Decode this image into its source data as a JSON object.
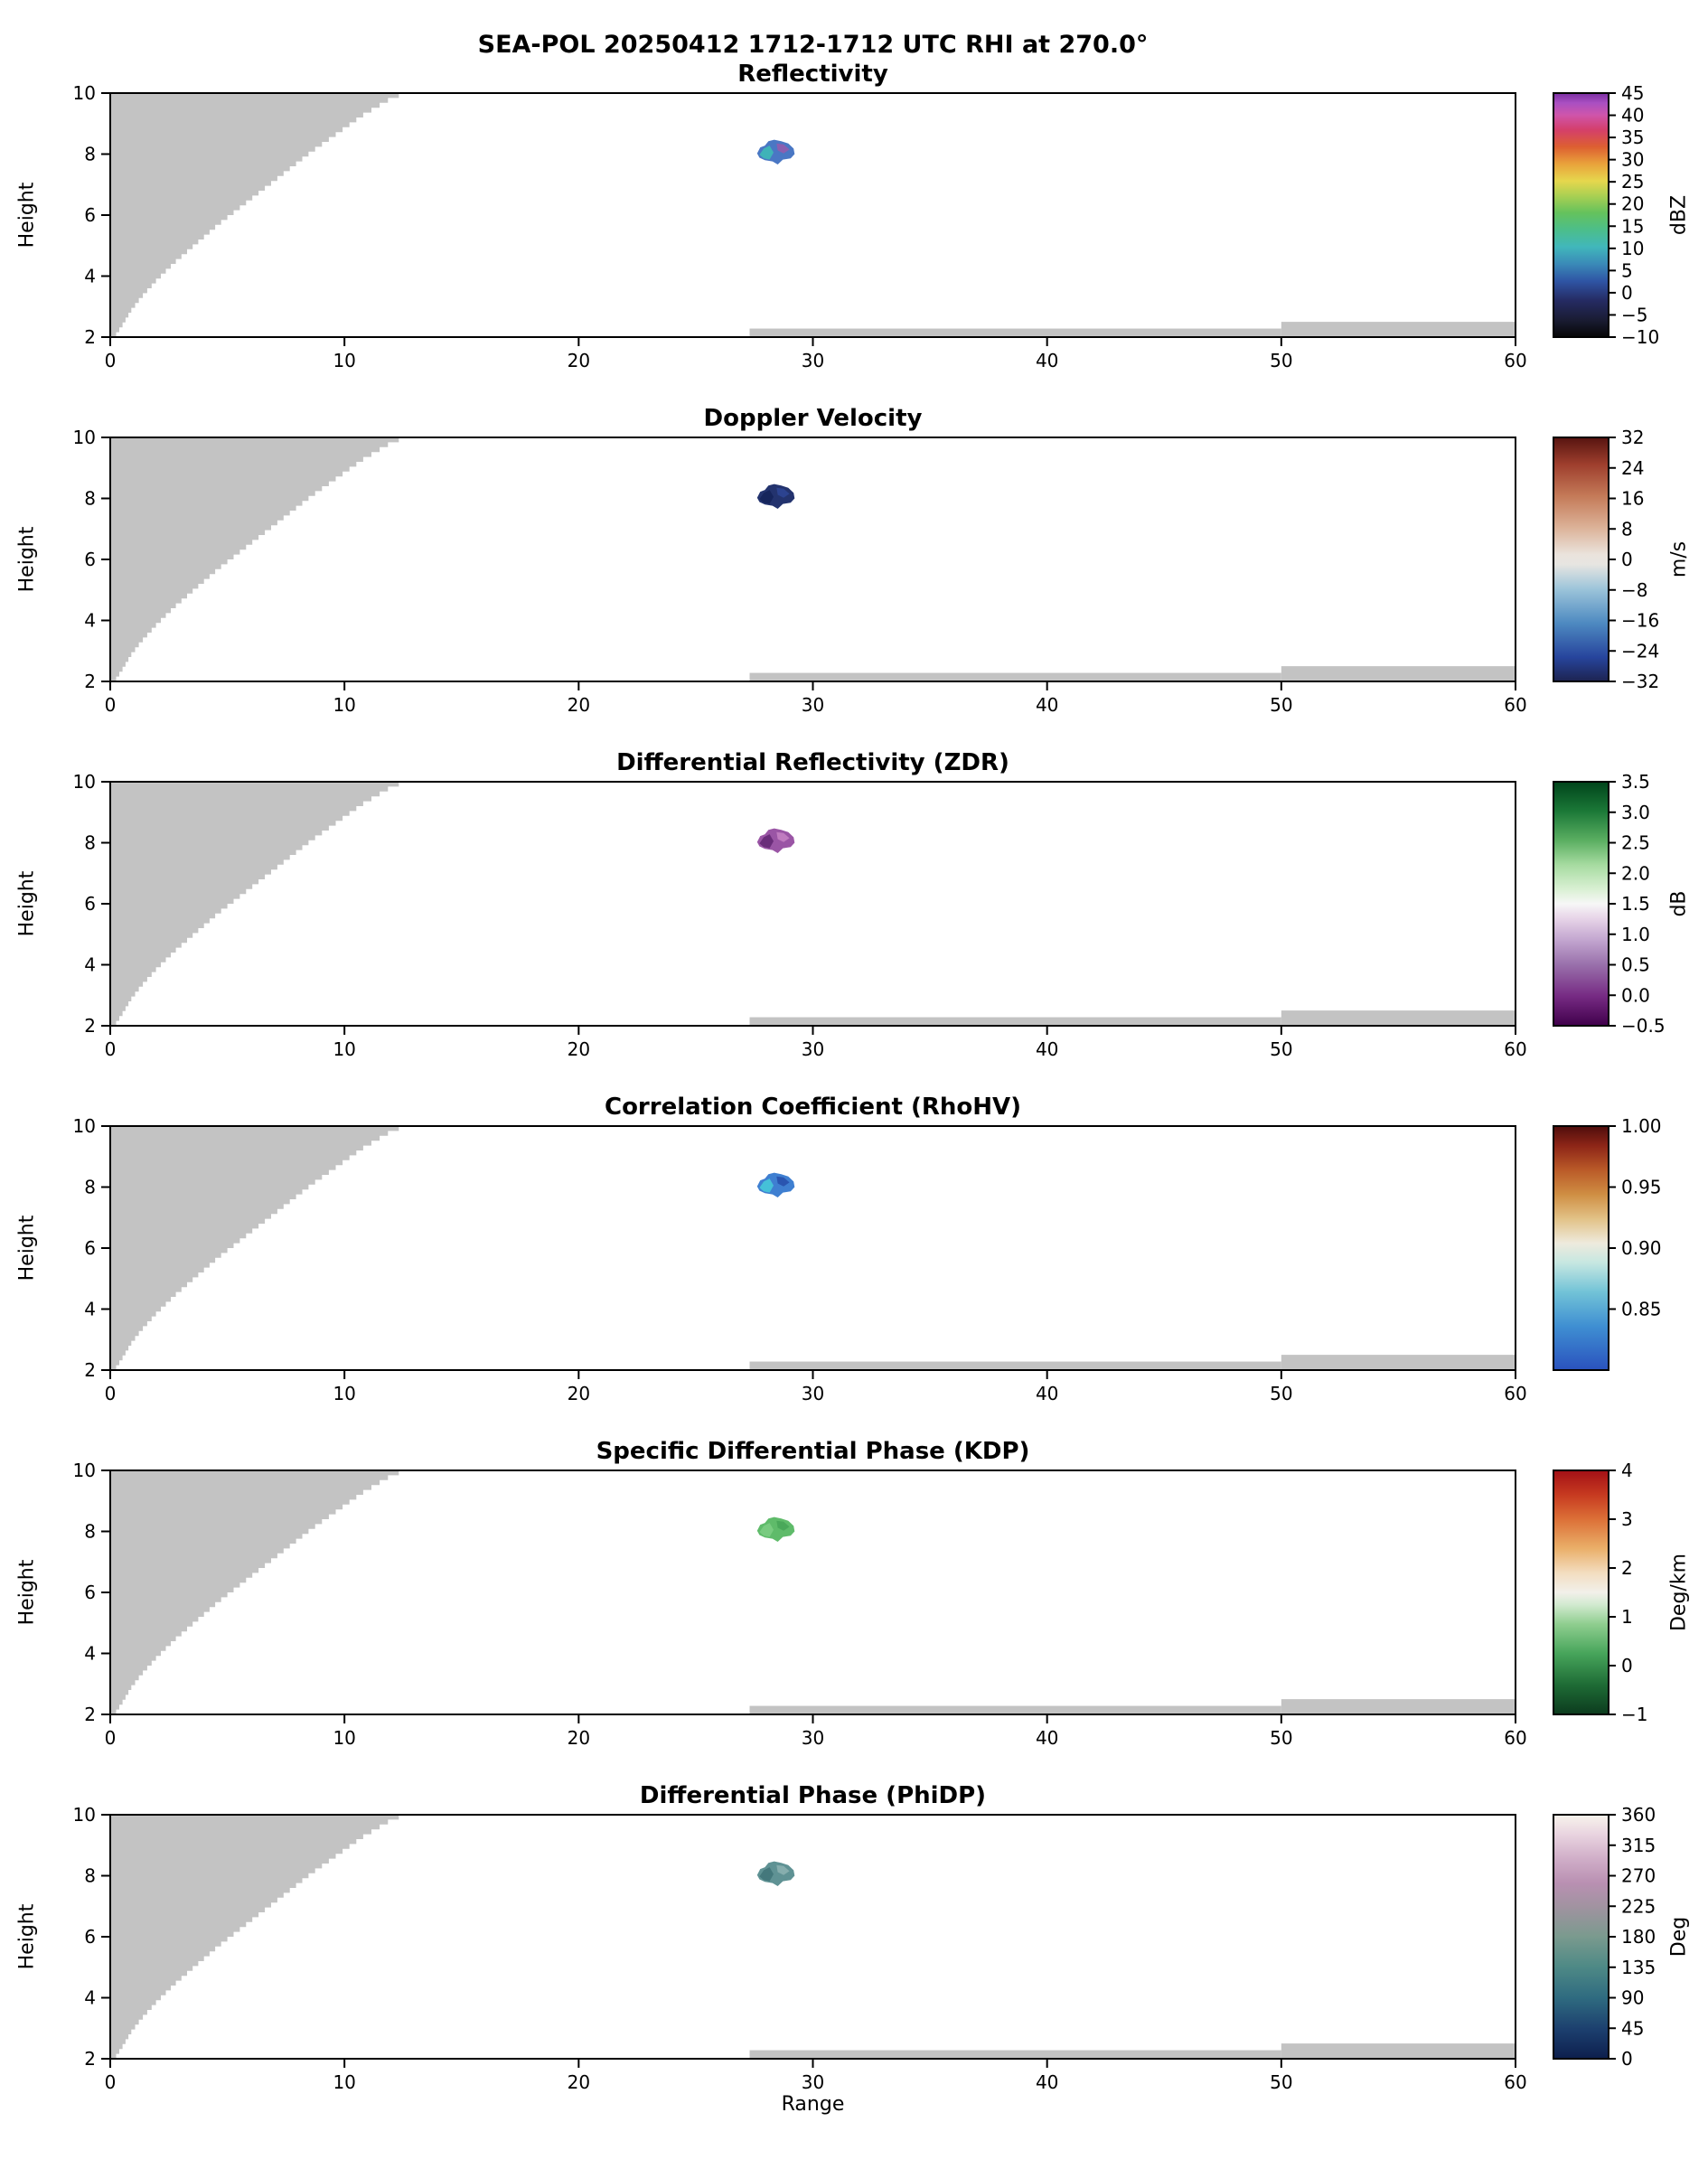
{
  "chart_data": {
    "type": "heatmap",
    "suptitle": "SEA-POL 20250412 1712-1712 UTC RHI at 270.0°",
    "xlabel": "Range",
    "ylabel": "Height",
    "xlim": [
      0,
      60
    ],
    "ylim": [
      2,
      10
    ],
    "x_ticks": [
      0,
      10,
      20,
      30,
      40,
      50,
      60
    ],
    "y_ticks": [
      2,
      4,
      6,
      8,
      10
    ],
    "grid": false,
    "clutter_color": "#c3c3c3",
    "blocked_region_boundary": [
      [
        0.25,
        2.0
      ],
      [
        0.55,
        2.35
      ],
      [
        0.9,
        2.8
      ],
      [
        1.3,
        3.2
      ],
      [
        2.0,
        3.8
      ],
      [
        2.8,
        4.4
      ],
      [
        3.7,
        5.0
      ],
      [
        4.6,
        5.6
      ],
      [
        5.6,
        6.2
      ],
      [
        6.6,
        6.8
      ],
      [
        7.6,
        7.4
      ],
      [
        8.6,
        8.0
      ],
      [
        9.7,
        8.6
      ],
      [
        10.8,
        9.2
      ],
      [
        11.9,
        9.7
      ],
      [
        12.8,
        10.0
      ]
    ],
    "ground_clutter_strips": [
      {
        "x0": 27.3,
        "x1": 50.0,
        "y0": 2.0,
        "y1": 2.28
      },
      {
        "x0": 50.0,
        "x1": 60.0,
        "y0": 2.0,
        "y1": 2.5
      }
    ],
    "echo_outline": [
      [
        27.62,
        8.02
      ],
      [
        27.75,
        8.22
      ],
      [
        27.95,
        8.28
      ],
      [
        28.1,
        8.42
      ],
      [
        28.35,
        8.47
      ],
      [
        28.65,
        8.42
      ],
      [
        28.95,
        8.35
      ],
      [
        29.18,
        8.18
      ],
      [
        29.22,
        8.0
      ],
      [
        29.05,
        7.86
      ],
      [
        28.72,
        7.82
      ],
      [
        28.5,
        7.66
      ],
      [
        28.28,
        7.76
      ],
      [
        27.95,
        7.8
      ],
      [
        27.72,
        7.88
      ]
    ],
    "echo_patch_a": [
      [
        27.72,
        7.98
      ],
      [
        27.9,
        8.18
      ],
      [
        28.15,
        8.28
      ],
      [
        28.32,
        8.05
      ],
      [
        28.15,
        7.82
      ],
      [
        27.9,
        7.86
      ]
    ],
    "echo_patch_b": [
      [
        28.45,
        8.35
      ],
      [
        28.75,
        8.32
      ],
      [
        29.0,
        8.15
      ],
      [
        28.75,
        8.02
      ],
      [
        28.5,
        8.12
      ]
    ],
    "panels": [
      {
        "title": "Reflectivity",
        "units": "dBZ",
        "vmin": -10,
        "vmax": 45,
        "cbar_tick_values": [
          45,
          40,
          35,
          30,
          25,
          20,
          15,
          10,
          5,
          0,
          -5,
          -10
        ],
        "cbar_tick_labels": [
          "45",
          "40",
          "35",
          "30",
          "25",
          "20",
          "15",
          "10",
          "5",
          "0",
          "−5",
          "−10"
        ],
        "cbar_stops": [
          {
            "at": 0,
            "c": "#060606"
          },
          {
            "at": 0.07,
            "c": "#1a1c33"
          },
          {
            "at": 0.15,
            "c": "#252b63"
          },
          {
            "at": 0.23,
            "c": "#2f55a5"
          },
          {
            "at": 0.3,
            "c": "#3a8ab8"
          },
          {
            "at": 0.37,
            "c": "#41b7bb"
          },
          {
            "at": 0.44,
            "c": "#4cbe8a"
          },
          {
            "at": 0.51,
            "c": "#65c25c"
          },
          {
            "at": 0.58,
            "c": "#abd052"
          },
          {
            "at": 0.64,
            "c": "#e6d74d"
          },
          {
            "at": 0.71,
            "c": "#e9a23b"
          },
          {
            "at": 0.78,
            "c": "#dd5f31"
          },
          {
            "at": 0.85,
            "c": "#d43f6b"
          },
          {
            "at": 0.91,
            "c": "#cf55ab"
          },
          {
            "at": 0.96,
            "c": "#a94fc2"
          },
          {
            "at": 1,
            "c": "#7a2fa2"
          }
        ],
        "echo_colors": [
          "#4a77c4",
          "#3fb3b8",
          "#8a5fb0"
        ]
      },
      {
        "title": "Doppler Velocity",
        "units": "m/s",
        "vmin": -32,
        "vmax": 32,
        "cbar_tick_values": [
          32,
          24,
          16,
          8,
          0,
          -8,
          -16,
          -24,
          -32
        ],
        "cbar_tick_labels": [
          "32",
          "24",
          "16",
          "8",
          "0",
          "−8",
          "−16",
          "−24",
          "−32"
        ],
        "cbar_stops": [
          {
            "at": 0,
            "c": "#1d2350"
          },
          {
            "at": 0.1,
            "c": "#27459d"
          },
          {
            "at": 0.24,
            "c": "#4e8ac1"
          },
          {
            "at": 0.38,
            "c": "#9dc5da"
          },
          {
            "at": 0.48,
            "c": "#e7e5e1"
          },
          {
            "at": 0.52,
            "c": "#eae3dc"
          },
          {
            "at": 0.63,
            "c": "#dcb298"
          },
          {
            "at": 0.76,
            "c": "#c47a58"
          },
          {
            "at": 0.89,
            "c": "#9e3e2d"
          },
          {
            "at": 1,
            "c": "#571410"
          }
        ],
        "echo_colors": [
          "#23336e",
          "#16255c",
          "#2c4390"
        ]
      },
      {
        "title": "Differential Reflectivity (ZDR)",
        "units": "dB",
        "vmin": -0.5,
        "vmax": 3.5,
        "cbar_tick_values": [
          3.5,
          3.0,
          2.5,
          2.0,
          1.5,
          1.0,
          0.5,
          0.0,
          -0.5
        ],
        "cbar_tick_labels": [
          "3.5",
          "3.0",
          "2.5",
          "2.0",
          "1.5",
          "1.0",
          "0.5",
          "0.0",
          "−0.5"
        ],
        "cbar_stops": [
          {
            "at": 0,
            "c": "#40004b"
          },
          {
            "at": 0.12,
            "c": "#762a83"
          },
          {
            "at": 0.25,
            "c": "#9970ab"
          },
          {
            "at": 0.35,
            "c": "#c2a5cf"
          },
          {
            "at": 0.44,
            "c": "#e7d4e8"
          },
          {
            "at": 0.5,
            "c": "#f7f7f7"
          },
          {
            "at": 0.56,
            "c": "#d9f0d3"
          },
          {
            "at": 0.66,
            "c": "#a6dba0"
          },
          {
            "at": 0.76,
            "c": "#5aae61"
          },
          {
            "at": 0.88,
            "c": "#1b7837"
          },
          {
            "at": 1,
            "c": "#00441b"
          }
        ],
        "echo_colors": [
          "#9a55a5",
          "#6a2d7a",
          "#c07cc0"
        ]
      },
      {
        "title": "Correlation Coefficient (RhoHV)",
        "units": "",
        "vmin": 0.8,
        "vmax": 1.0,
        "cbar_tick_values": [
          1.0,
          0.95,
          0.9,
          0.85
        ],
        "cbar_tick_labels": [
          "1.00",
          "0.95",
          "0.90",
          "0.85"
        ],
        "cbar_stops": [
          {
            "at": 0,
            "c": "#2a52be"
          },
          {
            "at": 0.18,
            "c": "#3f8fd2"
          },
          {
            "at": 0.32,
            "c": "#72c3d7"
          },
          {
            "at": 0.44,
            "c": "#c6e7e1"
          },
          {
            "at": 0.52,
            "c": "#eeeadd"
          },
          {
            "at": 0.62,
            "c": "#e2c287"
          },
          {
            "at": 0.72,
            "c": "#cf8e43"
          },
          {
            "at": 0.82,
            "c": "#ba5a28"
          },
          {
            "at": 0.92,
            "c": "#8d2517"
          },
          {
            "at": 1,
            "c": "#4e0d0c"
          }
        ],
        "echo_colors": [
          "#3f7fd1",
          "#45c0d8",
          "#2a55b0"
        ]
      },
      {
        "title": "Specific Differential Phase (KDP)",
        "units": "Deg/km",
        "vmin": -1,
        "vmax": 4,
        "cbar_tick_values": [
          4,
          3,
          2,
          1,
          0,
          -1
        ],
        "cbar_tick_labels": [
          "4",
          "3",
          "2",
          "1",
          "0",
          "−1"
        ],
        "cbar_stops": [
          {
            "at": 0,
            "c": "#0c3b1e"
          },
          {
            "at": 0.12,
            "c": "#1e6b35"
          },
          {
            "at": 0.25,
            "c": "#47a55b"
          },
          {
            "at": 0.37,
            "c": "#8fce8f"
          },
          {
            "at": 0.45,
            "c": "#d2ead0"
          },
          {
            "at": 0.5,
            "c": "#f2f0ea"
          },
          {
            "at": 0.58,
            "c": "#f3ddc0"
          },
          {
            "at": 0.68,
            "c": "#eaaf69"
          },
          {
            "at": 0.8,
            "c": "#dc7037"
          },
          {
            "at": 0.9,
            "c": "#c73a20"
          },
          {
            "at": 1,
            "c": "#a31016"
          }
        ],
        "echo_colors": [
          "#5fbb6a",
          "#79cb80",
          "#4aa85a"
        ]
      },
      {
        "title": "Differential Phase (PhiDP)",
        "units": "Deg",
        "vmin": 0,
        "vmax": 360,
        "cbar_tick_values": [
          360,
          315,
          270,
          225,
          180,
          135,
          90,
          45,
          0
        ],
        "cbar_tick_labels": [
          "360",
          "315",
          "270",
          "225",
          "180",
          "135",
          "90",
          "45",
          "0"
        ],
        "cbar_stops": [
          {
            "at": 0,
            "c": "#0d1f4d"
          },
          {
            "at": 0.12,
            "c": "#1c3f6e"
          },
          {
            "at": 0.25,
            "c": "#2f6b80"
          },
          {
            "at": 0.38,
            "c": "#4f8a86"
          },
          {
            "at": 0.5,
            "c": "#7a9a8e"
          },
          {
            "at": 0.62,
            "c": "#a093a0"
          },
          {
            "at": 0.72,
            "c": "#b990b2"
          },
          {
            "at": 0.82,
            "c": "#d0aec8"
          },
          {
            "at": 0.92,
            "c": "#e9d4e0"
          },
          {
            "at": 1,
            "c": "#f8f4ec"
          }
        ],
        "echo_colors": [
          "#5f9294",
          "#44787c",
          "#86aeae"
        ]
      }
    ]
  }
}
